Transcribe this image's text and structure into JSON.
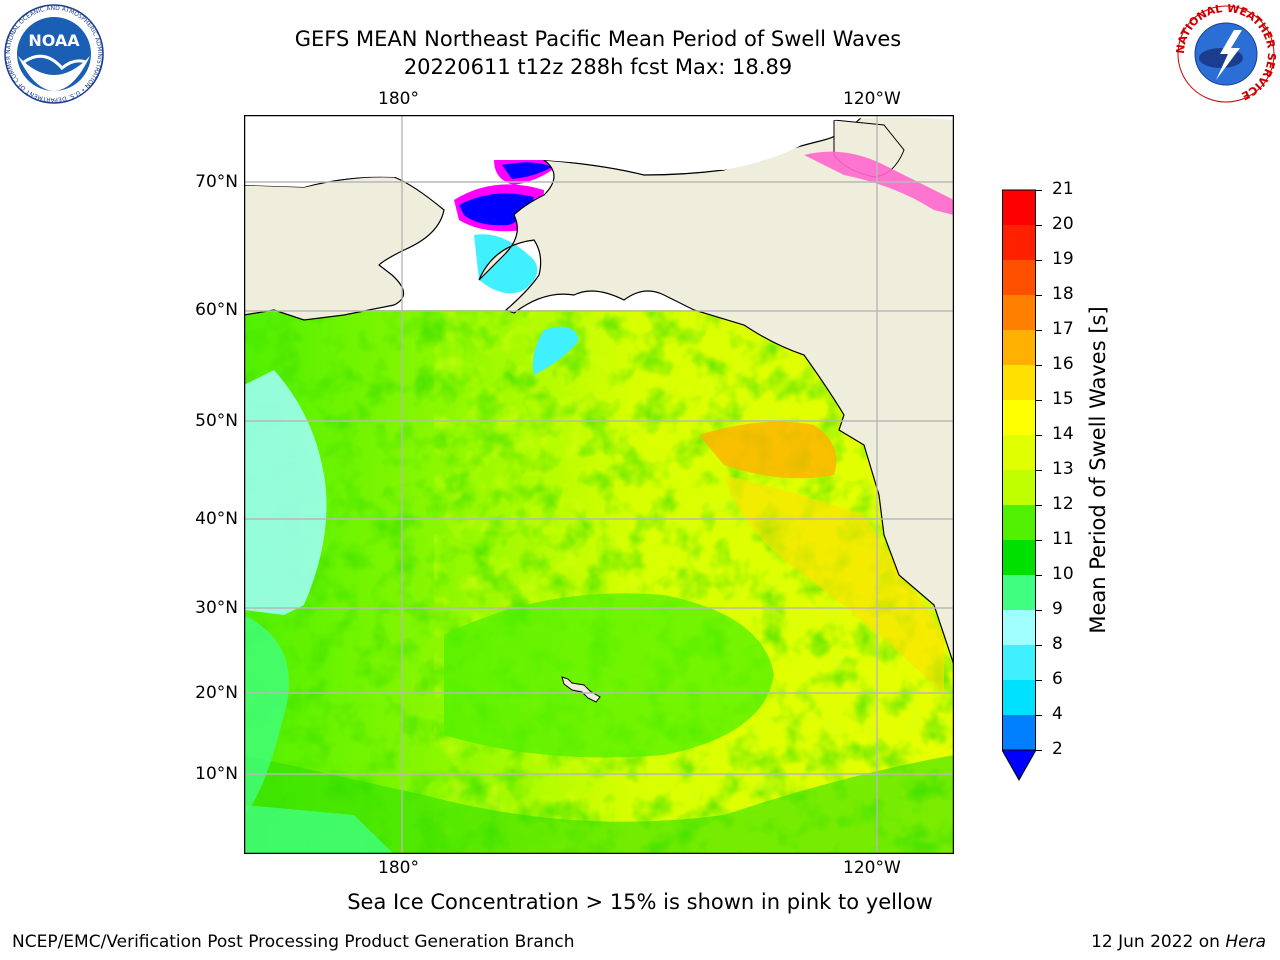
{
  "title_line1": "GEFS MEAN Northeast Pacific Mean Period of Swell Waves",
  "title_line2": "20220611 t12z 288h fcst   Max: 18.89",
  "lon_ticks": [
    "180°",
    "120°W"
  ],
  "lat_ticks": [
    "70°N",
    "60°N",
    "50°N",
    "40°N",
    "30°N",
    "20°N",
    "10°N"
  ],
  "colorbar": {
    "label": "Mean Period of Swell Waves [s]",
    "ticks": [
      "2",
      "4",
      "6",
      "8",
      "9",
      "10",
      "11",
      "12",
      "13",
      "14",
      "15",
      "16",
      "17",
      "18",
      "19",
      "20",
      "21"
    ],
    "colors": [
      "#0080ff",
      "#00e0ff",
      "#40f0ff",
      "#a0ffff",
      "#40ff80",
      "#00e000",
      "#50f000",
      "#c0ff00",
      "#e0ff00",
      "#ffff00",
      "#ffe000",
      "#ffb000",
      "#ff8000",
      "#ff5000",
      "#ff2000",
      "#ff0000"
    ],
    "under_color": "#0000ff"
  },
  "map_colors": {
    "land": "#efeddc",
    "ice_pink": "#ff66cc",
    "ice_magenta": "#ff00ff",
    "ice_blue": "#0000ff"
  },
  "footer_note": "Sea Ice Concentration > 15% is shown in pink to yellow",
  "credit_left": "NCEP/EMC/Verification Post Processing Product Generation Branch",
  "credit_date": "12 Jun 2022 on ",
  "credit_host": "Hera",
  "logos": {
    "noaa": {
      "text": "NOAA",
      "ring": "NATIONAL OCEANIC AND ATMOSPHERIC ADMINISTRATION • U.S. DEPARTMENT OF COMMERCE"
    },
    "nws": {
      "ring": "NATIONAL WEATHER SERVICE"
    }
  }
}
